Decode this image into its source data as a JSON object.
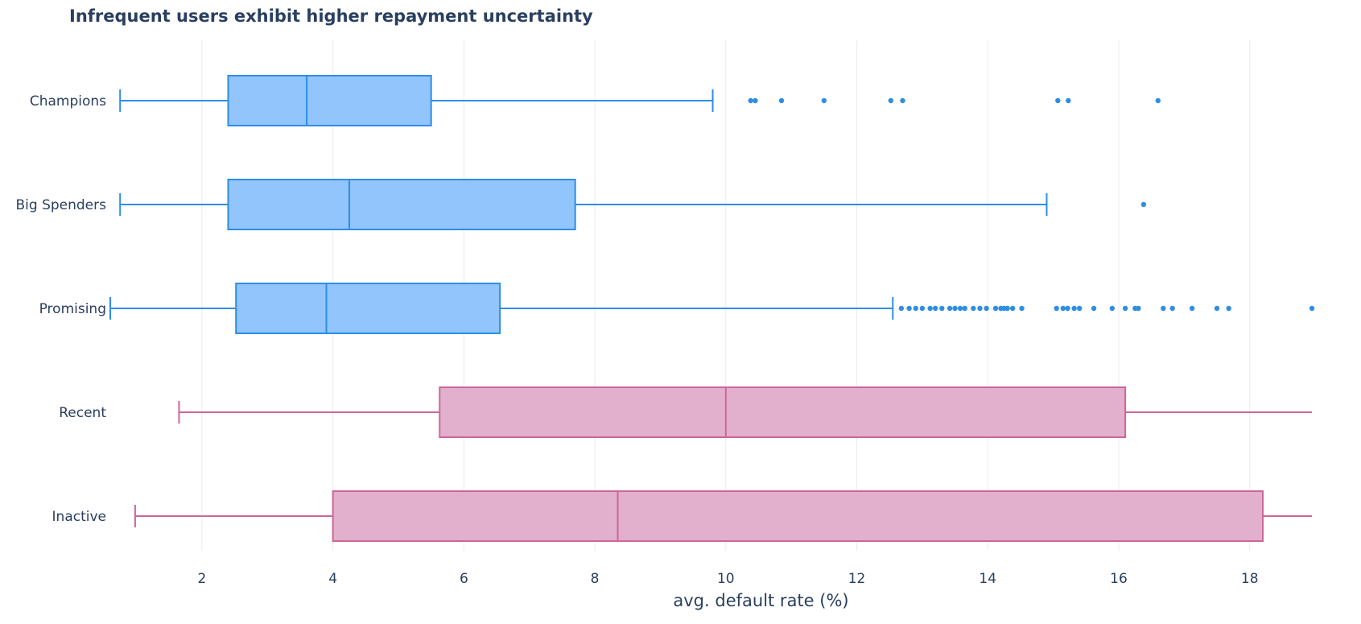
{
  "chart_data": {
    "type": "box",
    "orientation": "horizontal",
    "title": "Infrequent users exhibit higher repayment uncertainty",
    "xlabel": "avg. default rate (%)",
    "ylabel": "",
    "xlim": [
      0.6,
      18.95
    ],
    "xticks": [
      2,
      4,
      6,
      8,
      10,
      12,
      14,
      16,
      18
    ],
    "grid": true,
    "categories": [
      "Champions",
      "Big Spenders",
      "Promising",
      "Recent",
      "Inactive"
    ],
    "series": [
      {
        "category": "Champions",
        "color": "#2e8ee5",
        "fill": "#91c5fb",
        "min": 0.75,
        "q1": 2.4,
        "median": 3.6,
        "q3": 5.5,
        "max": 9.8,
        "outliers": [
          10.38,
          10.45,
          10.85,
          11.5,
          12.52,
          12.7,
          15.07,
          15.23,
          16.6
        ]
      },
      {
        "category": "Big Spenders",
        "color": "#2e8ee5",
        "fill": "#91c5fb",
        "min": 0.75,
        "q1": 2.4,
        "median": 4.25,
        "q3": 7.7,
        "max": 14.9,
        "outliers": [
          16.38
        ]
      },
      {
        "category": "Promising",
        "color": "#2e8ee5",
        "fill": "#91c5fb",
        "min": 0.6,
        "q1": 2.52,
        "median": 3.9,
        "q3": 6.55,
        "max": 12.55,
        "outliers": [
          12.68,
          12.8,
          12.9,
          13.0,
          13.12,
          13.2,
          13.3,
          13.42,
          13.5,
          13.58,
          13.65,
          13.78,
          13.88,
          13.98,
          14.12,
          14.2,
          14.25,
          14.3,
          14.38,
          14.52,
          15.05,
          15.15,
          15.22,
          15.32,
          15.4,
          15.62,
          15.9,
          16.1,
          16.25,
          16.3,
          16.68,
          16.82,
          17.12,
          17.5,
          17.68,
          18.95
        ]
      },
      {
        "category": "Recent",
        "color": "#cc6699",
        "fill": "#e2b0cc",
        "min": 1.65,
        "q1": 5.63,
        "median": 10.0,
        "q3": 16.1,
        "max": 18.95,
        "outliers": []
      },
      {
        "category": "Inactive",
        "color": "#cc6699",
        "fill": "#e2b0cc",
        "min": 0.98,
        "q1": 4.0,
        "median": 8.35,
        "q3": 18.2,
        "max": 18.95,
        "outliers": []
      }
    ]
  }
}
